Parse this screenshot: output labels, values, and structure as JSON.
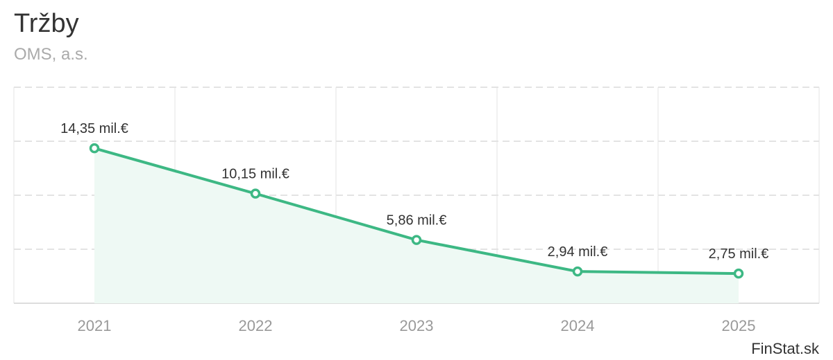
{
  "title": "Tržby",
  "subtitle": "OMS, a.s.",
  "credit": "FinStat.sk",
  "colors": {
    "line": "#3db884",
    "area": "#eef9f4",
    "grid": "#e3e3e3",
    "axis_text": "#999999",
    "label_text": "#333333"
  },
  "chart_data": {
    "type": "area",
    "categories": [
      "2021",
      "2022",
      "2023",
      "2024",
      "2025"
    ],
    "values": [
      14.35,
      10.15,
      5.86,
      2.94,
      2.75
    ],
    "data_labels": [
      "14,35 mil.€",
      "10,15 mil.€",
      "5,86 mil.€",
      "2,94 mil.€",
      "2,75 mil.€"
    ],
    "ylim": [
      0,
      20
    ],
    "grid": true,
    "legend": "none"
  }
}
